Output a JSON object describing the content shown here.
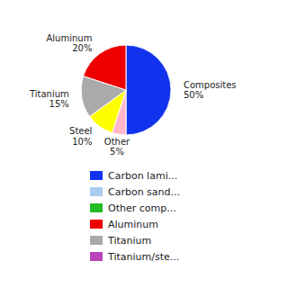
{
  "chart_data": {
    "type": "pie",
    "categories": [
      "Composites",
      "Other",
      "Steel",
      "Titanium",
      "Aluminum"
    ],
    "values": [
      50,
      5,
      10,
      15,
      20
    ],
    "value_labels": [
      "50%",
      "5%",
      "10%",
      "15%",
      "20%"
    ],
    "colors": [
      "#1133EE",
      "#FFB6C8",
      "#FFFF00",
      "#AAAAAA",
      "#EE0000"
    ],
    "data_labels": true,
    "series": [
      {
        "name": "Carbon lami...",
        "color": "#1133EE"
      },
      {
        "name": "Carbon sand...",
        "color": "#AACCEE"
      },
      {
        "name": "Other comp...",
        "color": "#22BB22"
      },
      {
        "name": "Aluminum",
        "color": "#EE0000"
      },
      {
        "name": "Titanium",
        "color": "#AAAAAA"
      },
      {
        "name": "Titanium/ste...",
        "color": "#BB44BB"
      }
    ],
    "legend": "bottom"
  }
}
